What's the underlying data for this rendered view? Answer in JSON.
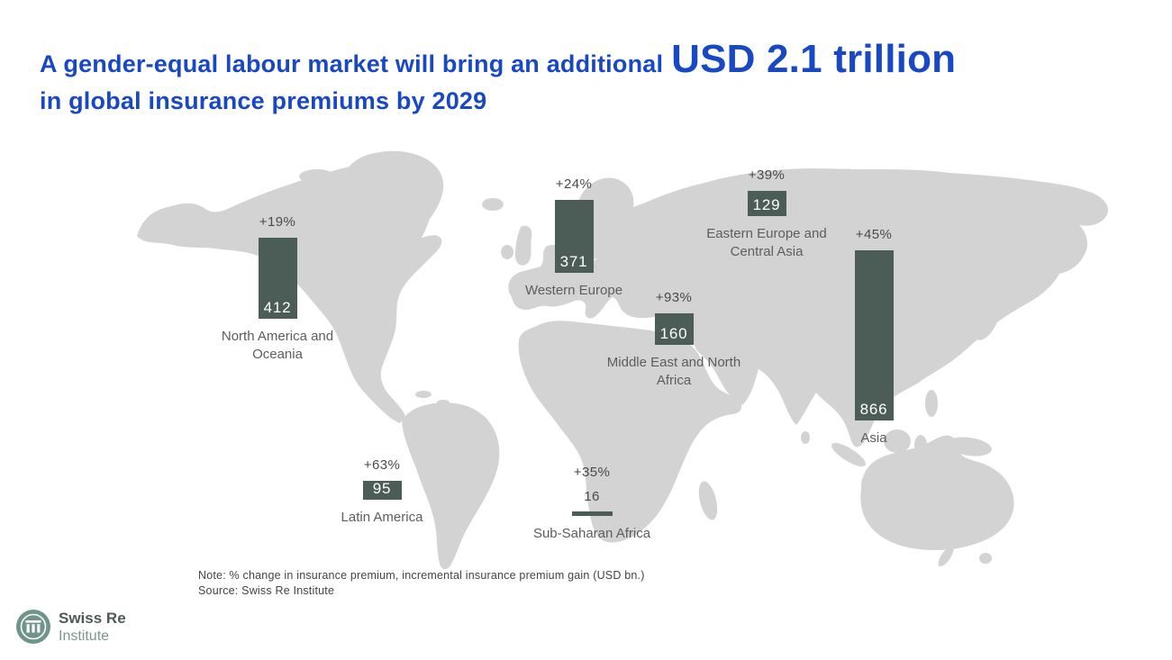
{
  "title": {
    "part1": "A gender-equal labour market will bring an additional",
    "highlight": "USD 2.1 trillion",
    "part2": "in global insurance premiums by 2029"
  },
  "colors": {
    "title_blue": "#1848c4",
    "bar_fill": "#4b5d56",
    "map_land": "#d3d3d3",
    "logo_green": "#6f948a"
  },
  "regions": [
    {
      "name": "North America and Oceania",
      "pct": "+19%",
      "value": 412
    },
    {
      "name": "Western Europe",
      "pct": "+24%",
      "value": 371
    },
    {
      "name": "Eastern Europe and Central Asia",
      "pct": "+39%",
      "value": 129
    },
    {
      "name": "Middle East and North Africa",
      "pct": "+93%",
      "value": 160
    },
    {
      "name": "Asia",
      "pct": "+45%",
      "value": 866
    },
    {
      "name": "Latin America",
      "pct": "+63%",
      "value": 95
    },
    {
      "name": "Sub-Saharan Africa",
      "pct": "+35%",
      "value": 16
    }
  ],
  "note": {
    "line1": "Note: % change in insurance premium, incremental insurance premium gain (USD bn.)",
    "line2": "Source: Swiss Re Institute"
  },
  "logo": {
    "name": "Swiss Re",
    "sub": "Institute"
  },
  "chart_data": {
    "type": "bar",
    "layout": "world-map-overlay",
    "title": "A gender-equal labour market will bring an additional USD 2.1 trillion in global insurance premiums by 2029",
    "categories": [
      "North America and Oceania",
      "Western Europe",
      "Eastern Europe and Central Asia",
      "Middle East and North Africa",
      "Asia",
      "Latin America",
      "Sub-Saharan Africa"
    ],
    "series": [
      {
        "name": "Incremental insurance premium gain (USD bn.)",
        "values": [
          412,
          371,
          129,
          160,
          866,
          95,
          16
        ]
      },
      {
        "name": "% change in insurance premium",
        "values": [
          "+19%",
          "+24%",
          "+39%",
          "+93%",
          "+45%",
          "+63%",
          "+35%"
        ]
      }
    ],
    "note": "% change in insurance premium, incremental insurance premium gain (USD bn.)",
    "source": "Swiss Re Institute"
  }
}
